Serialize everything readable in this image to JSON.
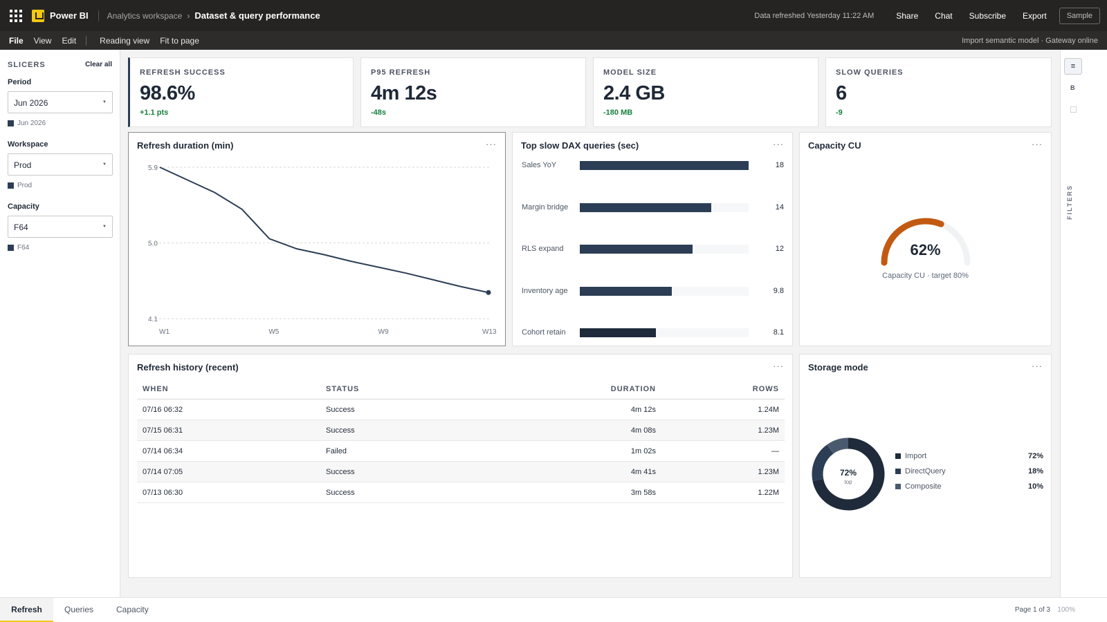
{
  "app": {
    "name": "Power BI",
    "workspace": "Analytics workspace",
    "breadcrumb_sep": "›",
    "report_title": "Dataset & query performance",
    "data_refreshed": "Data refreshed Yesterday 11:22 AM",
    "actions": [
      "Share",
      "Chat",
      "Subscribe",
      "Export"
    ],
    "sample_label": "Sample",
    "accent": "#f2c811"
  },
  "menu": {
    "items": [
      "File",
      "View",
      "Edit"
    ],
    "view_items": [
      "Reading view",
      "Fit to page"
    ],
    "status": "Import semantic model · Gateway online"
  },
  "slicers": {
    "title": "SLICERS",
    "clear_all": "Clear all",
    "groups": [
      {
        "label": "Period",
        "value": "Jun 2026",
        "chip": "Jun 2026"
      },
      {
        "label": "Workspace",
        "value": "Prod",
        "chip": "Prod"
      },
      {
        "label": "Capacity",
        "value": "F64",
        "chip": "F64"
      }
    ]
  },
  "kpis": [
    {
      "label": "REFRESH SUCCESS",
      "value": "98.6%",
      "delta": "+1.1 pts"
    },
    {
      "label": "P95 REFRESH",
      "value": "4m 12s",
      "delta": "-48s"
    },
    {
      "label": "MODEL SIZE",
      "value": "2.4 GB",
      "delta": "-180 MB"
    },
    {
      "label": "SLOW QUERIES",
      "value": "6",
      "delta": "-9"
    }
  ],
  "more_glyph": "···",
  "line_visual": {
    "title": "Refresh duration (min)"
  },
  "bar_visual": {
    "title": "Top slow DAX queries (sec)"
  },
  "gauge_visual": {
    "title": "Capacity CU",
    "value_label": "62%",
    "caption": "Capacity CU · target 80%",
    "value": 0.62,
    "color": "#c25a12"
  },
  "table_visual": {
    "title": "Refresh history (recent)",
    "columns": [
      "WHEN",
      "STATUS",
      "DURATION",
      "ROWS"
    ],
    "rows": [
      [
        "07/16 06:32",
        "Success",
        "4m 12s",
        "1.24M"
      ],
      [
        "07/15 06:31",
        "Success",
        "4m 08s",
        "1.23M"
      ],
      [
        "07/14 06:34",
        "Failed",
        "1m 02s",
        "—"
      ],
      [
        "07/14 07:05",
        "Success",
        "4m 41s",
        "1.23M"
      ],
      [
        "07/13 06:30",
        "Success",
        "3m 58s",
        "1.22M"
      ]
    ]
  },
  "donut_visual": {
    "title": "Storage mode",
    "center_value": "72%",
    "center_label": "top",
    "slices": [
      {
        "name": "Import",
        "pct": "72%",
        "value": 72,
        "color": "#1f2a3a"
      },
      {
        "name": "DirectQuery",
        "pct": "18%",
        "value": 18,
        "color": "#2c3e55"
      },
      {
        "name": "Composite",
        "pct": "10%",
        "value": 10,
        "color": "#4a5a6e"
      }
    ]
  },
  "chart_data": [
    {
      "type": "line",
      "title": "Refresh duration (min)",
      "x": [
        "W1",
        "W2",
        "W3",
        "W4",
        "W5",
        "W6",
        "W7",
        "W8",
        "W9",
        "W10",
        "W11",
        "W12",
        "W13"
      ],
      "x_tick_labels": [
        "W1",
        "W5",
        "W9",
        "W13"
      ],
      "series": [
        {
          "values": [
            5.9,
            5.75,
            5.6,
            5.4,
            5.05,
            4.93,
            4.86,
            4.78,
            4.71,
            4.64,
            4.56,
            4.48,
            4.41
          ]
        }
      ],
      "ylim": [
        4.1,
        5.9
      ],
      "y_tick_labels": [
        "5.9",
        "5.0",
        "4.1"
      ],
      "grid": true,
      "color": "#2c3e55"
    },
    {
      "type": "bar",
      "title": "Top slow DAX queries (sec)",
      "categories": [
        "Sales YoY",
        "Margin bridge",
        "RLS expand",
        "Inventory age",
        "Cohort retain"
      ],
      "values": [
        18,
        14,
        12,
        9.8,
        8.1
      ],
      "value_labels": [
        "18",
        "14",
        "12",
        "9.8",
        "8.1"
      ],
      "xlim": [
        0,
        18
      ],
      "color": "#2c3e55"
    }
  ],
  "pages": {
    "tabs": [
      "Refresh",
      "Queries",
      "Capacity"
    ],
    "active": "Refresh",
    "page_info": "Page 1 of 3",
    "zoom": "100%"
  },
  "rail": {
    "menu_glyph": "≡",
    "b_label": "B",
    "filters_label": "FILTERS"
  }
}
